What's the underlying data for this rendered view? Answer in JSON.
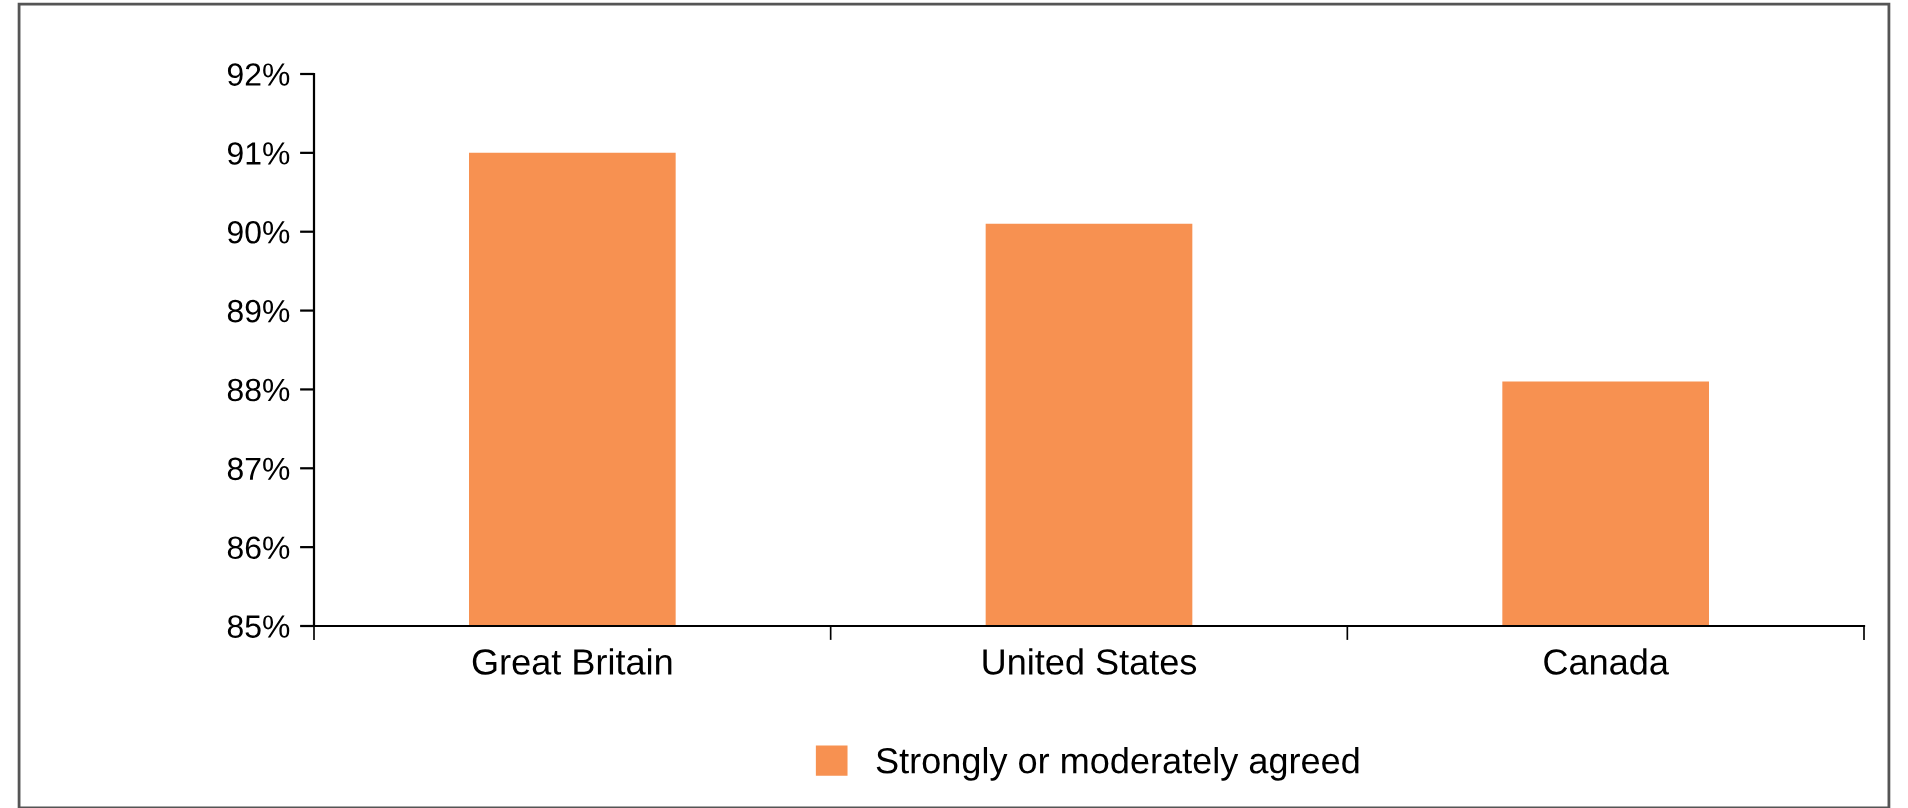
{
  "chart_data": {
    "type": "bar",
    "categories": [
      "Great Britain",
      "United States",
      "Canada"
    ],
    "series": [
      {
        "name": "Strongly or moderately agreed",
        "color": "#f79151",
        "values": [
          91.0,
          90.1,
          88.1
        ]
      }
    ],
    "ylim": [
      85,
      92
    ],
    "yticks": [
      {
        "value": 85,
        "label": "85%"
      },
      {
        "value": 86,
        "label": "86%"
      },
      {
        "value": 87,
        "label": "87%"
      },
      {
        "value": 88,
        "label": "88%"
      },
      {
        "value": 89,
        "label": "89%"
      },
      {
        "value": 90,
        "label": "90%"
      },
      {
        "value": 91,
        "label": "91%"
      },
      {
        "value": 92,
        "label": "92%"
      }
    ],
    "grid": false,
    "legend": "bottom"
  }
}
